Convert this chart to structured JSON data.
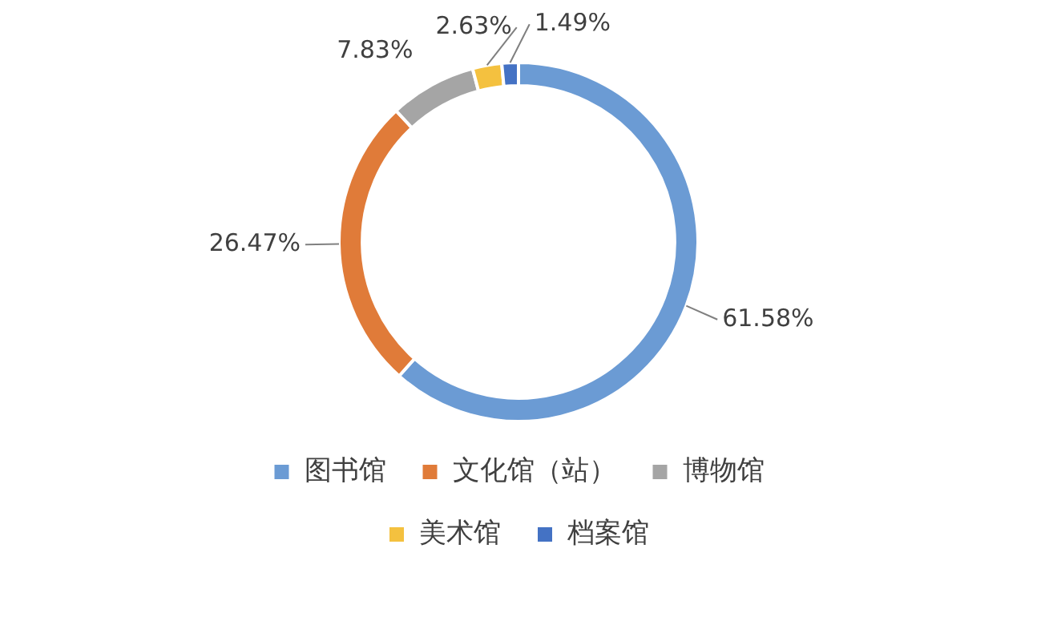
{
  "chart_data": {
    "type": "donut",
    "categories": [
      "图书馆",
      "文化馆（站）",
      "博物馆",
      "美术馆",
      "档案馆"
    ],
    "values": [
      61.58,
      26.47,
      7.83,
      2.63,
      1.49
    ],
    "colors": [
      "#6b9bd4",
      "#e07b39",
      "#a5a5a5",
      "#f4c13f",
      "#4472c4"
    ],
    "value_labels": [
      "61.58%",
      "26.47%",
      "7.83%",
      "2.63%",
      "1.49%"
    ],
    "legend": "bottom"
  }
}
